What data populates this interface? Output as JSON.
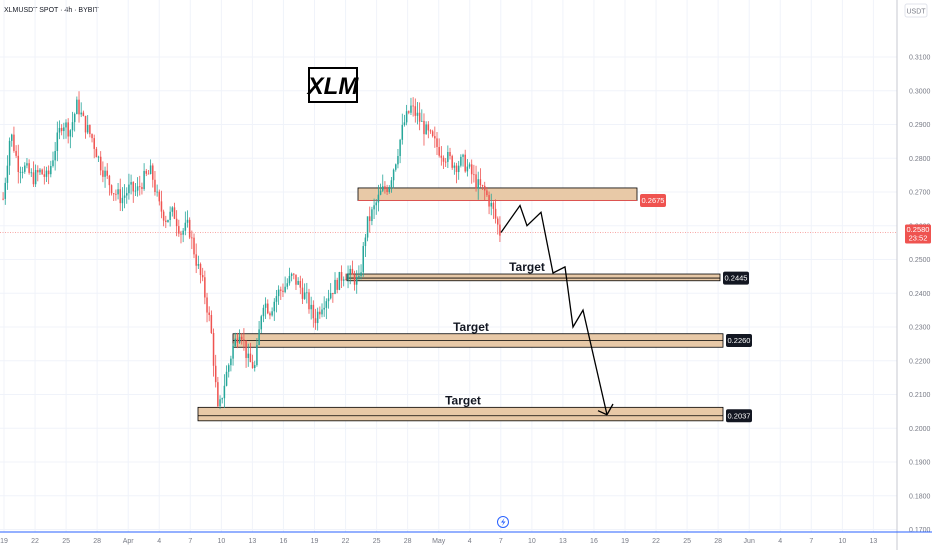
{
  "chart_title": "XLMUSDT SPOT · 4h · BYBIT",
  "currency": "USDT",
  "logo_text": "XLM",
  "chart_data": {
    "type": "candlestick",
    "ylim": [
      0.168,
      0.319
    ],
    "y_ticks": [
      "0.3100",
      "0.3000",
      "0.2900",
      "0.2800",
      "0.2700",
      "0.2600",
      "0.2500",
      "0.2400",
      "0.2300",
      "0.2200",
      "0.2100",
      "0.2000",
      "0.1900",
      "0.1800",
      "0.1700"
    ],
    "x_ticks": [
      "19",
      "22",
      "25",
      "28",
      "Apr",
      "4",
      "7",
      "10",
      "13",
      "16",
      "19",
      "22",
      "25",
      "28",
      "May",
      "4",
      "7",
      "10",
      "13",
      "16",
      "19",
      "22",
      "25",
      "28",
      "Jun",
      "4",
      "7",
      "10",
      "13"
    ],
    "current_price": {
      "value": 0.258,
      "label": "0.2580",
      "countdown": "23:52"
    },
    "zones": [
      {
        "label": "",
        "price": 0.2675,
        "price_label": "0.2675",
        "top": 0.2712,
        "bottom": 0.2675,
        "start": 0.27,
        "end": 0.27
      },
      {
        "label": "Target",
        "price": 0.2445,
        "price_label": "0.2445",
        "top": 0.2457,
        "bottom": 0.2437
      },
      {
        "label": "Target",
        "price": 0.226,
        "price_label": "0.2260",
        "top": 0.228,
        "bottom": 0.224
      },
      {
        "label": "Target",
        "price": 0.2037,
        "price_label": "0.2037",
        "top": 0.2062,
        "bottom": 0.2022
      }
    ],
    "projection_path": [
      [
        0.258,
        0.266
      ],
      [
        0.26,
        0.264
      ],
      [
        0.246,
        0.2478
      ],
      [
        0.23,
        0.235
      ],
      [
        0.204,
        0.206
      ]
    ],
    "price_path": [
      [
        0.268,
        0.288,
        0.278,
        0.277,
        0.274,
        0.276,
        0.274,
        0.283,
        0.291,
        0.288,
        0.296,
        0.29,
        0.286,
        0.279,
        0.274,
        0.27,
        0.268,
        0.271,
        0.27,
        0.274,
        0.276,
        0.266,
        0.262,
        0.264,
        0.258,
        0.26,
        0.25,
        0.242,
        0.23,
        0.204,
        0.215,
        0.224,
        0.23,
        0.22,
        0.218,
        0.238,
        0.235,
        0.24,
        0.242,
        0.245,
        0.242,
        0.238,
        0.232,
        0.237,
        0.24,
        0.243,
        0.246,
        0.245,
        0.243,
        0.26,
        0.265,
        0.27,
        0.272,
        0.28,
        0.29,
        0.295,
        0.292,
        0.288,
        0.285,
        0.282,
        0.28,
        0.278,
        0.279,
        0.276,
        0.272,
        0.27,
        0.265,
        0.258
      ]
    ]
  }
}
